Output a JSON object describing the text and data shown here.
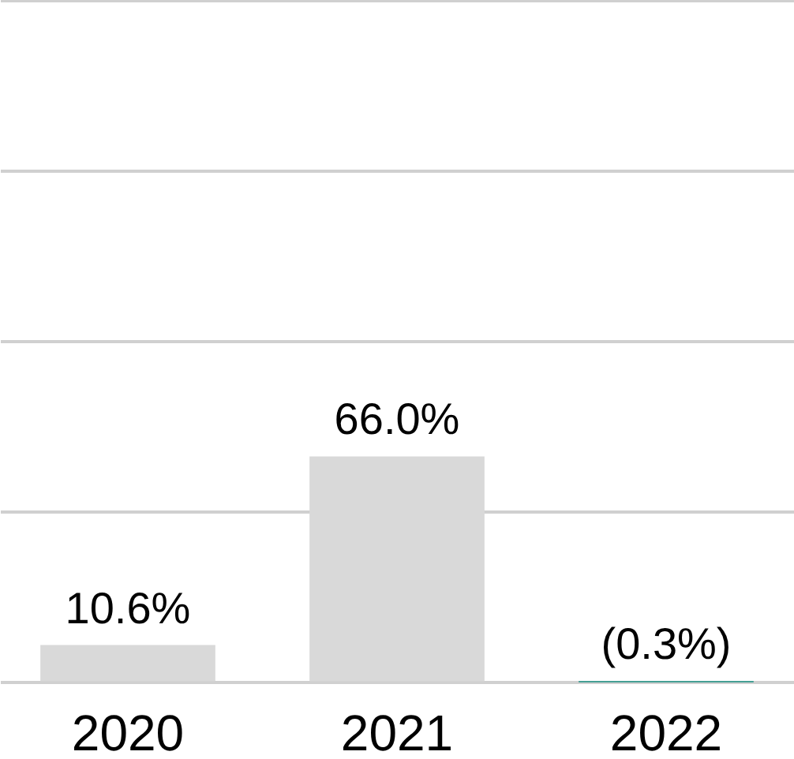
{
  "chart_data": {
    "type": "bar",
    "categories": [
      "2020",
      "2021",
      "2022"
    ],
    "values": [
      10.6,
      66.0,
      -0.3
    ],
    "colors": [
      "#d9d9d9",
      "#d9d9d9",
      "#178f80"
    ],
    "value_labels": [
      "10.6%",
      "66.0%",
      "(0.3%)"
    ],
    "ylim": [
      -2,
      200
    ],
    "yticks": [
      {
        "value": 0,
        "label": null
      },
      {
        "value": 50,
        "label": null
      },
      {
        "value": 100,
        "label": null
      },
      {
        "value": 150,
        "label": null
      },
      {
        "value": 200,
        "label": null
      }
    ],
    "grid": "y",
    "tick_labels": "x"
  }
}
